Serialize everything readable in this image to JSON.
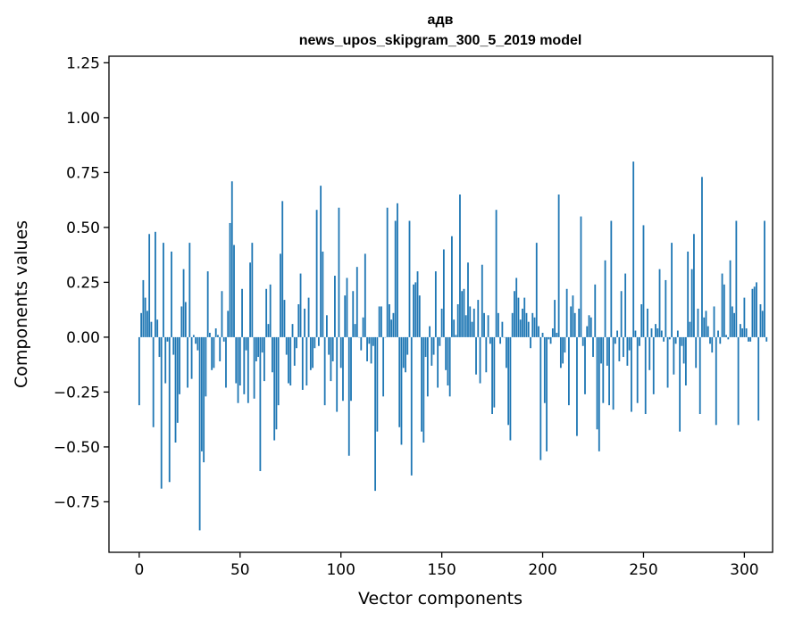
{
  "chart_data": {
    "type": "bar",
    "title": "адв",
    "subtitle": "news_upos_skipgram_300_5_2019 model",
    "xlabel": "Vector components",
    "ylabel": "Components values",
    "xlim": [
      -15,
      314
    ],
    "ylim": [
      -0.98,
      1.28
    ],
    "xticks": [
      0,
      50,
      100,
      150,
      200,
      250,
      300
    ],
    "yticks": [
      -0.75,
      -0.5,
      -0.25,
      0.0,
      0.25,
      0.5,
      0.75,
      1.0,
      1.25
    ],
    "ytick_labels": [
      "−0.75",
      "−0.50",
      "−0.25",
      "0.00",
      "0.25",
      "0.50",
      "0.75",
      "1.00",
      "1.25"
    ],
    "grid": false,
    "bar_color": "#1f77b4",
    "values": [
      -0.31,
      0.11,
      0.26,
      0.18,
      0.12,
      0.47,
      0.07,
      -0.41,
      0.48,
      0.08,
      -0.09,
      -0.69,
      0.43,
      -0.21,
      -0.02,
      -0.66,
      0.39,
      -0.08,
      -0.48,
      -0.39,
      -0.26,
      0.14,
      0.31,
      0.16,
      -0.23,
      0.43,
      -0.19,
      0.01,
      -0.03,
      -0.06,
      -0.88,
      -0.52,
      -0.57,
      -0.27,
      0.3,
      0.02,
      -0.15,
      -0.14,
      0.04,
      0.01,
      -0.11,
      0.21,
      -0.02,
      -0.23,
      0.12,
      0.52,
      0.71,
      0.42,
      -0.21,
      -0.3,
      -0.22,
      0.22,
      -0.26,
      -0.06,
      -0.3,
      0.34,
      0.43,
      -0.28,
      -0.11,
      -0.09,
      -0.61,
      -0.07,
      -0.2,
      0.22,
      0.06,
      0.24,
      -0.16,
      -0.47,
      -0.42,
      -0.31,
      0.38,
      0.62,
      0.17,
      -0.08,
      -0.21,
      -0.22,
      0.06,
      -0.13,
      -0.05,
      0.15,
      0.29,
      -0.24,
      0.13,
      -0.22,
      0.18,
      -0.15,
      -0.14,
      -0.05,
      0.58,
      -0.04,
      0.69,
      0.39,
      -0.31,
      0.1,
      -0.08,
      -0.2,
      -0.11,
      0.28,
      -0.34,
      0.59,
      -0.14,
      -0.29,
      0.19,
      0.27,
      -0.54,
      -0.29,
      0.21,
      0.06,
      0.32,
      0.0,
      -0.06,
      0.09,
      0.38,
      -0.11,
      -0.03,
      -0.12,
      -0.04,
      -0.7,
      -0.43,
      0.14,
      0.14,
      -0.27,
      0.0,
      0.59,
      0.15,
      0.08,
      0.11,
      0.53,
      0.61,
      -0.41,
      -0.49,
      -0.14,
      -0.16,
      -0.08,
      0.53,
      -0.63,
      0.24,
      0.25,
      0.3,
      0.19,
      -0.43,
      -0.48,
      -0.09,
      -0.27,
      0.05,
      -0.13,
      -0.08,
      0.3,
      -0.23,
      -0.04,
      0.13,
      0.4,
      -0.15,
      -0.22,
      -0.27,
      0.46,
      0.08,
      0.01,
      0.15,
      0.65,
      0.21,
      0.22,
      0.1,
      0.34,
      0.14,
      0.07,
      0.13,
      -0.17,
      0.17,
      -0.21,
      0.33,
      0.11,
      -0.16,
      0.1,
      -0.03,
      -0.35,
      -0.32,
      0.58,
      0.11,
      -0.03,
      0.07,
      0.0,
      -0.14,
      -0.4,
      -0.47,
      0.11,
      0.21,
      0.27,
      0.18,
      0.08,
      0.13,
      0.18,
      0.11,
      0.07,
      -0.05,
      0.11,
      0.09,
      0.43,
      0.05,
      -0.56,
      0.02,
      -0.3,
      -0.52,
      -0.01,
      -0.03,
      0.04,
      0.17,
      0.02,
      0.65,
      -0.14,
      -0.12,
      -0.07,
      0.22,
      -0.31,
      0.14,
      0.19,
      0.11,
      -0.45,
      0.13,
      0.55,
      -0.04,
      -0.26,
      0.05,
      0.1,
      0.09,
      -0.09,
      0.24,
      -0.42,
      -0.52,
      -0.12,
      -0.3,
      0.35,
      -0.13,
      -0.31,
      0.53,
      -0.33,
      -0.03,
      0.03,
      -0.11,
      0.21,
      -0.09,
      0.29,
      -0.13,
      -0.06,
      -0.34,
      0.8,
      0.03,
      -0.3,
      -0.04,
      0.15,
      0.51,
      -0.35,
      0.13,
      -0.15,
      0.04,
      -0.26,
      0.06,
      0.04,
      0.31,
      0.03,
      -0.02,
      0.26,
      -0.23,
      -0.01,
      0.43,
      -0.17,
      -0.03,
      0.03,
      -0.43,
      -0.04,
      -0.12,
      -0.22,
      0.39,
      0.07,
      0.31,
      0.47,
      -0.14,
      0.13,
      -0.35,
      0.73,
      0.09,
      0.12,
      0.05,
      -0.03,
      -0.07,
      0.14,
      -0.4,
      0.03,
      -0.03,
      0.29,
      0.24,
      0.01,
      -0.01,
      0.35,
      0.14,
      0.11,
      0.53,
      -0.4,
      0.06,
      0.04,
      0.18,
      0.04,
      -0.02,
      -0.02,
      0.22,
      0.23,
      0.25,
      -0.38,
      0.15,
      0.12,
      0.53,
      -0.02
    ]
  }
}
